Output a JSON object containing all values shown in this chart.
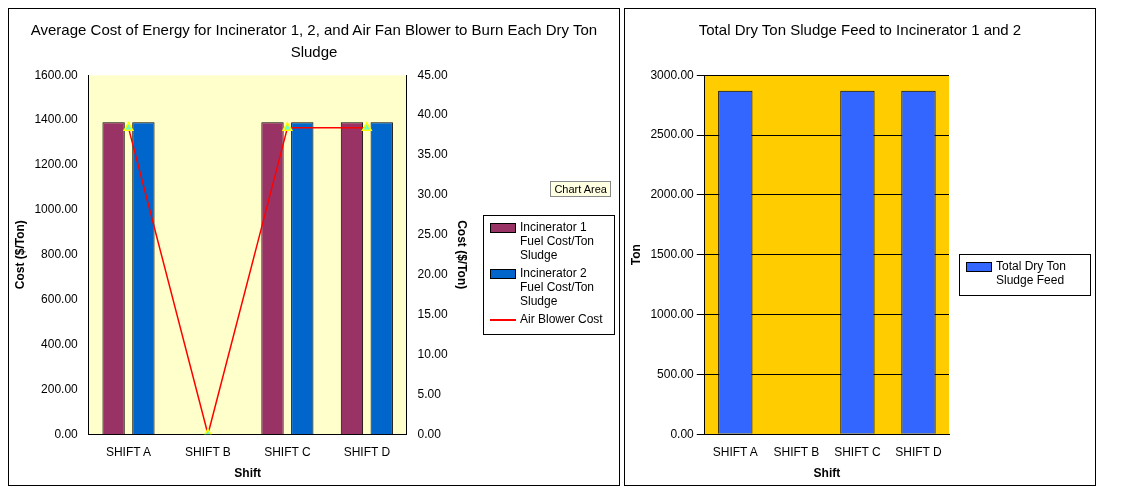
{
  "chart_data": [
    {
      "type": "bar",
      "title": "Average Cost of Energy for Incinerator 1, 2, and Air Fan Blower to Burn Each Dry Ton Sludge",
      "xlabel": "Shift",
      "ylabel": "Cost ($/Ton)",
      "y2label": "Cost ($/Ton)",
      "categories": [
        "SHIFT A",
        "SHIFT B",
        "SHIFT C",
        "SHIFT D"
      ],
      "series": [
        {
          "name": "Incinerator 1 Fuel Cost/Ton Sludge",
          "color": "#993366",
          "values": [
            1390,
            0,
            1390,
            1390
          ]
        },
        {
          "name": "Incinerator 2 Fuel Cost/Ton Sludge",
          "color": "#0066cc",
          "values": [
            1390,
            0,
            1390,
            1390
          ]
        },
        {
          "name": "Air Blower Cost",
          "type": "line",
          "axis": "y2",
          "color": "#ff0000",
          "values": [
            38.4,
            0,
            38.4,
            38.4
          ]
        }
      ],
      "marker": "triangle",
      "ylim": [
        0,
        1600
      ],
      "yticks": [
        {
          "value": 0,
          "label": "0.00"
        },
        {
          "value": 200,
          "label": "200.00"
        },
        {
          "value": 400,
          "label": "400.00"
        },
        {
          "value": 600,
          "label": "600.00"
        },
        {
          "value": 800,
          "label": "800.00"
        },
        {
          "value": 1000,
          "label": "1000.00"
        },
        {
          "value": 1200,
          "label": "1200.00"
        },
        {
          "value": 1400,
          "label": "1400.00"
        },
        {
          "value": 1600,
          "label": "1600.00"
        }
      ],
      "y2lim": [
        0,
        45
      ],
      "y2ticks": [
        {
          "value": 0,
          "label": "0.00"
        },
        {
          "value": 5,
          "label": "5.00"
        },
        {
          "value": 10,
          "label": "10.00"
        },
        {
          "value": 15,
          "label": "15.00"
        },
        {
          "value": 20,
          "label": "20.00"
        },
        {
          "value": 25,
          "label": "25.00"
        },
        {
          "value": 30,
          "label": "30.00"
        },
        {
          "value": 35,
          "label": "35.00"
        },
        {
          "value": 40,
          "label": "40.00"
        },
        {
          "value": 45,
          "label": "45.00"
        }
      ],
      "legend": "right",
      "annotations": [
        "Chart Area"
      ]
    },
    {
      "type": "bar",
      "title": "Total Dry Ton Sludge Feed to Incinerator 1 and 2",
      "xlabel": "Shift",
      "ylabel": "Ton",
      "categories": [
        "SHIFT A",
        "SHIFT B",
        "SHIFT C",
        "SHIFT D"
      ],
      "series": [
        {
          "name": "Total Dry Ton Sludge Feed",
          "color": "#3366ff",
          "values": [
            2870,
            0,
            2870,
            2870
          ]
        }
      ],
      "ylim": [
        0,
        3000
      ],
      "yticks": [
        {
          "value": 0,
          "label": "0.00"
        },
        {
          "value": 500,
          "label": "500.00"
        },
        {
          "value": 1000,
          "label": "1000.00"
        },
        {
          "value": 1500,
          "label": "1500.00"
        },
        {
          "value": 2000,
          "label": "2000.00"
        },
        {
          "value": 2500,
          "label": "2500.00"
        },
        {
          "value": 3000,
          "label": "3000.00"
        }
      ],
      "grid": "y",
      "legend": "right"
    }
  ]
}
